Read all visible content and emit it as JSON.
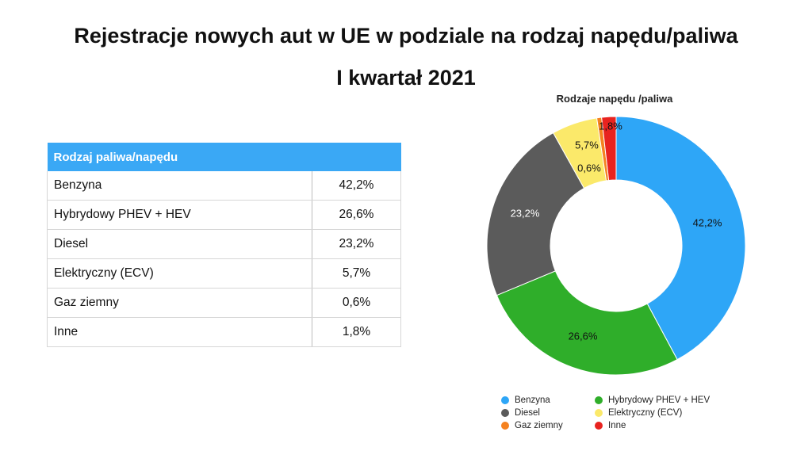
{
  "title_line1": "Rejestracje nowych aut w UE w podziale na rodzaj napędu/paliwa",
  "title_line2": "I kwartał 2021",
  "table": {
    "header": "Rodzaj paliwa/napędu",
    "rows": [
      {
        "label": "Benzyna",
        "value": "42,2%"
      },
      {
        "label": "Hybrydowy PHEV + HEV",
        "value": "26,6%"
      },
      {
        "label": "Diesel",
        "value": "23,2%"
      },
      {
        "label": "Elektryczny (ECV)",
        "value": "5,7%"
      },
      {
        "label": "Gaz ziemny",
        "value": "0,6%"
      },
      {
        "label": "Inne",
        "value": "1,8%"
      }
    ]
  },
  "chart_data": {
    "type": "pie",
    "subtype": "donut",
    "title": "Rodzaje napędu /paliwa",
    "categories": [
      "Benzyna",
      "Hybrydowy PHEV + HEV",
      "Diesel",
      "Elektryczny (ECV)",
      "Gaz ziemny",
      "Inne"
    ],
    "values": [
      42.2,
      26.6,
      23.2,
      5.7,
      0.6,
      1.8
    ],
    "value_labels": [
      "42,2%",
      "26,6%",
      "23,2%",
      "5,7%",
      "0,6%",
      "1,8%"
    ],
    "colors": [
      "#2ea6f7",
      "#2fae2a",
      "#5b5b5b",
      "#fbe96a",
      "#f58220",
      "#e8231f"
    ],
    "legend_position": "bottom",
    "legend": [
      {
        "label": "Benzyna",
        "color": "#2ea6f7"
      },
      {
        "label": "Hybrydowy PHEV + HEV",
        "color": "#2fae2a"
      },
      {
        "label": "Diesel",
        "color": "#5b5b5b"
      },
      {
        "label": "Elektryczny (ECV)",
        "color": "#fbe96a"
      },
      {
        "label": "Gaz ziemny",
        "color": "#f58220"
      },
      {
        "label": "Inne",
        "color": "#e8231f"
      }
    ]
  }
}
